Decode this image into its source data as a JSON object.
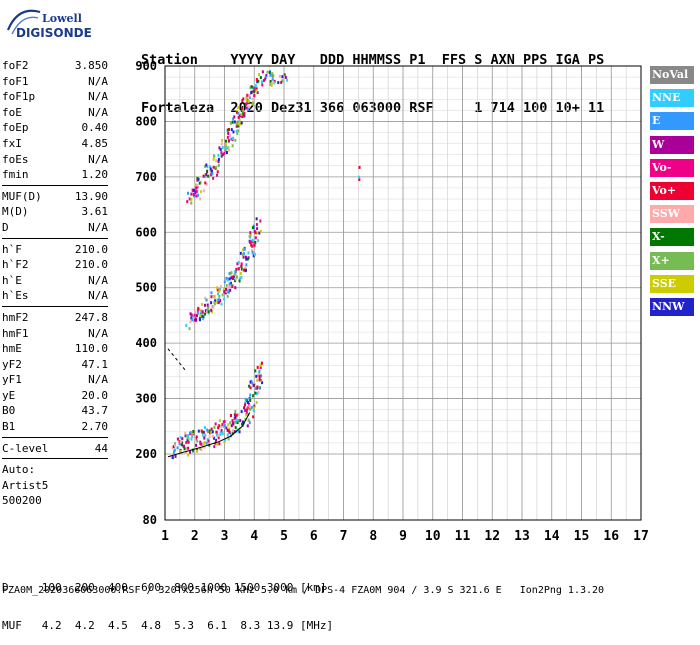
{
  "logo": {
    "line1": "Lowell",
    "line2": "DIGISONDE"
  },
  "header": {
    "line1": "Station    YYYY DAY   DDD HHMMSS P1  FFS S AXN PPS IGA PS",
    "line2": "Fortaleza  2020 Dez31 366 063000 RSF     1 714 100 10+ 11"
  },
  "params_group1": [
    {
      "name": "foF2",
      "value": "3.850"
    },
    {
      "name": "foF1",
      "value": "N/A"
    },
    {
      "name": "foF1p",
      "value": "N/A"
    },
    {
      "name": "foE",
      "value": "N/A"
    },
    {
      "name": "foEp",
      "value": "0.40"
    },
    {
      "name": "fxI",
      "value": "4.85"
    },
    {
      "name": "foEs",
      "value": "N/A"
    },
    {
      "name": "fmin",
      "value": "1.20"
    }
  ],
  "params_group2": [
    {
      "name": "MUF(D)",
      "value": "13.90"
    },
    {
      "name": "M(D)",
      "value": "3.61"
    },
    {
      "name": "D",
      "value": "N/A"
    }
  ],
  "params_group3": [
    {
      "name": "h`F",
      "value": "210.0"
    },
    {
      "name": "h`F2",
      "value": "210.0"
    },
    {
      "name": "h`E",
      "value": "N/A"
    },
    {
      "name": "h`Es",
      "value": "N/A"
    }
  ],
  "params_group4": [
    {
      "name": "hmF2",
      "value": "247.8"
    },
    {
      "name": "hmF1",
      "value": "N/A"
    },
    {
      "name": "hmE",
      "value": "110.0"
    },
    {
      "name": "yF2",
      "value": "47.1"
    },
    {
      "name": "yF1",
      "value": "N/A"
    },
    {
      "name": "yE",
      "value": "20.0"
    },
    {
      "name": "B0",
      "value": "43.7"
    },
    {
      "name": "B1",
      "value": "2.70"
    }
  ],
  "params_group5": [
    {
      "name": "C-level",
      "value": "44"
    }
  ],
  "autoscale": {
    "line1": "Auto:",
    "line2": "Artist5",
    "line3": "500200"
  },
  "legend": [
    {
      "label": "NoVal",
      "color": "#888888"
    },
    {
      "label": "NNE",
      "color": "#33ccff"
    },
    {
      "label": "E",
      "color": "#3399ff"
    },
    {
      "label": "W",
      "color": "#aa0099"
    },
    {
      "label": "Vo-",
      "color": "#ee0088"
    },
    {
      "label": "Vo+",
      "color": "#ee0033"
    },
    {
      "label": "SSW",
      "color": "#ffaaaa"
    },
    {
      "label": "X-",
      "color": "#007700"
    },
    {
      "label": "X+",
      "color": "#77bb55"
    },
    {
      "label": "SSE",
      "color": "#cccc00"
    },
    {
      "label": "NNW",
      "color": "#2222cc"
    }
  ],
  "bottom": {
    "row1": "D     100  200  400  600  800 1000 1500 3000 [km]",
    "row2": "MUF   4.2  4.2  4.5  4.8  5.3  6.1  8.3 13.9 [MHz]"
  },
  "footer": "FZA0M_2020366063000.RSF / 320fx256h 50 kHz 5.0 km / DPS-4 FZA0M 904 / 3.9 S 321.6 E   Ion2Png 1.3.20",
  "chart_data": {
    "type": "scatter",
    "title": "",
    "xlabel": "",
    "ylabel": "",
    "xlim": [
      1,
      17
    ],
    "ylim": [
      80,
      900
    ],
    "xticks": [
      1,
      2,
      3,
      4,
      5,
      6,
      7,
      8,
      9,
      10,
      11,
      12,
      13,
      14,
      15,
      16,
      17
    ],
    "yticks": [
      80,
      200,
      300,
      400,
      500,
      600,
      700,
      800,
      900
    ],
    "grid": true,
    "traces": [
      {
        "name": "F2 trace (1st hop)",
        "points": [
          [
            1.3,
            212
          ],
          [
            1.6,
            218
          ],
          [
            2.0,
            225
          ],
          [
            2.4,
            232
          ],
          [
            2.8,
            240
          ],
          [
            3.2,
            250
          ],
          [
            3.5,
            262
          ],
          [
            3.8,
            285
          ],
          [
            4.0,
            320
          ],
          [
            4.2,
            360
          ]
        ]
      },
      {
        "name": "F2 trace (2nd hop)",
        "points": [
          [
            1.8,
            440
          ],
          [
            2.2,
            458
          ],
          [
            2.6,
            478
          ],
          [
            3.0,
            500
          ],
          [
            3.3,
            520
          ],
          [
            3.6,
            545
          ],
          [
            3.9,
            580
          ],
          [
            4.1,
            620
          ]
        ]
      },
      {
        "name": "F2 trace (3rd hop)",
        "points": [
          [
            1.8,
            660
          ],
          [
            2.2,
            690
          ],
          [
            2.6,
            720
          ],
          [
            3.0,
            755
          ],
          [
            3.3,
            790
          ],
          [
            3.6,
            820
          ],
          [
            3.9,
            850
          ],
          [
            4.3,
            880
          ],
          [
            5.0,
            880
          ]
        ]
      },
      {
        "name": "Isolated echo",
        "points": [
          [
            7.5,
            700
          ],
          [
            7.5,
            725
          ]
        ]
      }
    ],
    "profile_curve": {
      "points": [
        [
          1.1,
          195
        ],
        [
          1.6,
          203
        ],
        [
          2.2,
          212
        ],
        [
          2.8,
          222
        ],
        [
          3.2,
          232
        ],
        [
          3.6,
          250
        ],
        [
          3.85,
          275
        ]
      ]
    },
    "dashed_line": {
      "points": [
        [
          1.1,
          390
        ],
        [
          1.7,
          350
        ]
      ]
    }
  }
}
